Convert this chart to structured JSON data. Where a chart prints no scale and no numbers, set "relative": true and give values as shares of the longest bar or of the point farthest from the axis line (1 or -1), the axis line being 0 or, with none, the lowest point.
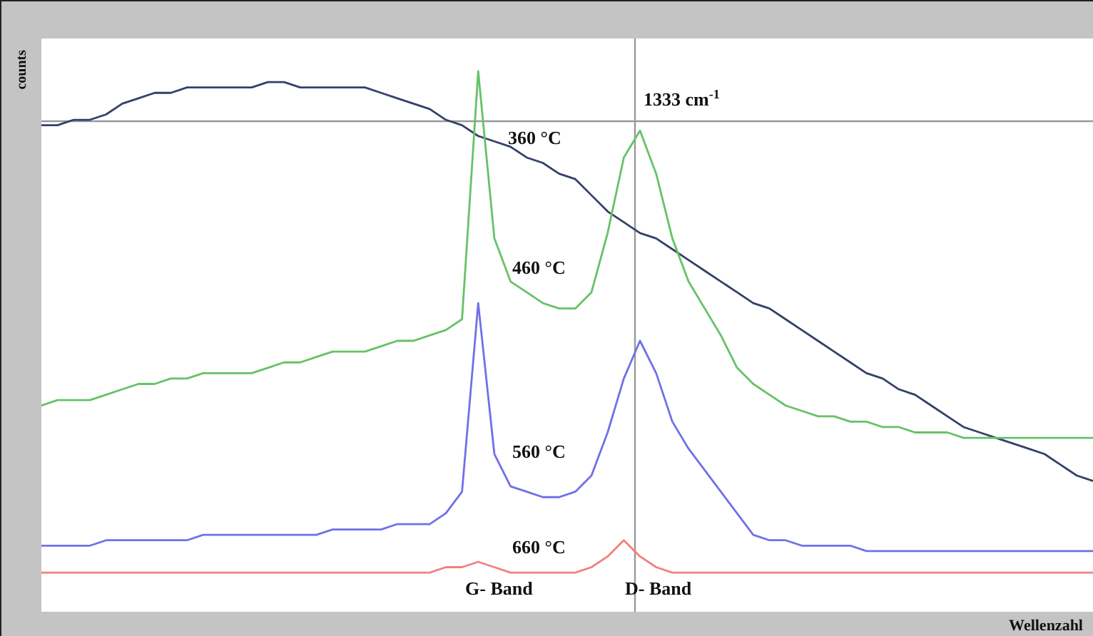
{
  "chart_data": {
    "type": "line",
    "relative": true,
    "xlabel": "Wellenzahl",
    "ylabel": "counts",
    "tick_labels": false,
    "marker": "none",
    "line_style": "solid",
    "categories": [
      null,
      null,
      null,
      null,
      null,
      null,
      null,
      null,
      null,
      null,
      null,
      null,
      null,
      null,
      null,
      null,
      null,
      null,
      null,
      null,
      null,
      null,
      null,
      null,
      null,
      null,
      null,
      null,
      null,
      null,
      null,
      null,
      null,
      null,
      null,
      null,
      null,
      null,
      null,
      null,
      null,
      null,
      null,
      null,
      null,
      null,
      null,
      null,
      null,
      null,
      null,
      null,
      null,
      null,
      null,
      null,
      null,
      null,
      null,
      null,
      null,
      null,
      null,
      null,
      null,
      null
    ],
    "series": [
      {
        "name": "360 °C",
        "color": "#33406a",
        "values": [
          0.9,
          0.9,
          0.91,
          0.91,
          0.92,
          0.94,
          0.95,
          0.96,
          0.96,
          0.97,
          0.97,
          0.97,
          0.97,
          0.97,
          0.98,
          0.98,
          0.97,
          0.97,
          0.97,
          0.97,
          0.97,
          0.96,
          0.95,
          0.94,
          0.93,
          0.91,
          0.9,
          0.88,
          0.87,
          0.86,
          0.84,
          0.83,
          0.81,
          0.8,
          0.77,
          0.74,
          0.72,
          0.7,
          0.69,
          0.67,
          0.65,
          0.63,
          0.61,
          0.59,
          0.57,
          0.56,
          0.54,
          0.52,
          0.5,
          0.48,
          0.46,
          0.44,
          0.43,
          0.41,
          0.4,
          0.38,
          0.36,
          0.34,
          0.33,
          0.32,
          0.31,
          0.3,
          0.29,
          0.27,
          0.25,
          0.24
        ]
      },
      {
        "name": "460 °C",
        "color": "#66c266",
        "values": [
          0.38,
          0.39,
          0.39,
          0.39,
          0.4,
          0.41,
          0.42,
          0.42,
          0.43,
          0.43,
          0.44,
          0.44,
          0.44,
          0.44,
          0.45,
          0.46,
          0.46,
          0.47,
          0.48,
          0.48,
          0.48,
          0.49,
          0.5,
          0.5,
          0.51,
          0.52,
          0.54,
          1.0,
          0.69,
          0.61,
          0.59,
          0.57,
          0.56,
          0.56,
          0.59,
          0.7,
          0.84,
          0.89,
          0.81,
          0.69,
          0.61,
          0.56,
          0.51,
          0.45,
          0.42,
          0.4,
          0.38,
          0.37,
          0.36,
          0.36,
          0.35,
          0.35,
          0.34,
          0.34,
          0.33,
          0.33,
          0.33,
          0.32,
          0.32,
          0.32,
          0.32,
          0.32,
          0.32,
          0.32,
          0.32,
          0.32
        ]
      },
      {
        "name": "560 °C",
        "color": "#7070e8",
        "values": [
          0.12,
          0.12,
          0.12,
          0.12,
          0.13,
          0.13,
          0.13,
          0.13,
          0.13,
          0.13,
          0.14,
          0.14,
          0.14,
          0.14,
          0.14,
          0.14,
          0.14,
          0.14,
          0.15,
          0.15,
          0.15,
          0.15,
          0.16,
          0.16,
          0.16,
          0.18,
          0.22,
          0.57,
          0.29,
          0.23,
          0.22,
          0.21,
          0.21,
          0.22,
          0.25,
          0.33,
          0.43,
          0.5,
          0.44,
          0.35,
          0.3,
          0.26,
          0.22,
          0.18,
          0.14,
          0.13,
          0.13,
          0.12,
          0.12,
          0.12,
          0.12,
          0.11,
          0.11,
          0.11,
          0.11,
          0.11,
          0.11,
          0.11,
          0.11,
          0.11,
          0.11,
          0.11,
          0.11,
          0.11,
          0.11,
          0.11
        ]
      },
      {
        "name": "660 °C",
        "color": "#f08080",
        "values": [
          0.07,
          0.07,
          0.07,
          0.07,
          0.07,
          0.07,
          0.07,
          0.07,
          0.07,
          0.07,
          0.07,
          0.07,
          0.07,
          0.07,
          0.07,
          0.07,
          0.07,
          0.07,
          0.07,
          0.07,
          0.07,
          0.07,
          0.07,
          0.07,
          0.07,
          0.08,
          0.08,
          0.09,
          0.08,
          0.07,
          0.07,
          0.07,
          0.07,
          0.07,
          0.08,
          0.1,
          0.13,
          0.1,
          0.08,
          0.07,
          0.07,
          0.07,
          0.07,
          0.07,
          0.07,
          0.07,
          0.07,
          0.07,
          0.07,
          0.07,
          0.07,
          0.07,
          0.07,
          0.07,
          0.07,
          0.07,
          0.07,
          0.07,
          0.07,
          0.07,
          0.07,
          0.07,
          0.07,
          0.07,
          0.07,
          0.07
        ]
      }
    ],
    "annotations": [
      "G- Band",
      "D- Band",
      "1333 cm$^{-1}$"
    ]
  }
}
